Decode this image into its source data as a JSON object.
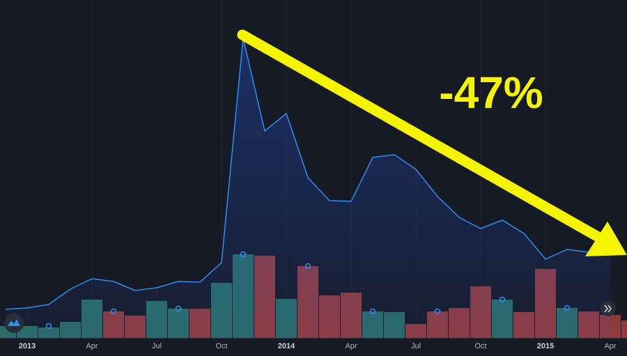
{
  "chart_data": {
    "type": "line",
    "annotation": "-47%",
    "categories": [
      null,
      "2013",
      null,
      null,
      "Apr",
      null,
      null,
      "Jul",
      null,
      null,
      "Oct",
      null,
      null,
      "2014",
      null,
      null,
      "Apr",
      null,
      null,
      "Jul",
      null,
      null,
      "Oct",
      null,
      null,
      "2015",
      null,
      null,
      "Apr",
      null
    ],
    "ylim": [
      0,
      485
    ],
    "series": [
      {
        "kind": "price",
        "color": "#2f8fef",
        "values": [
          41,
          43,
          48,
          70,
          85,
          81,
          68,
          72,
          81,
          80,
          108,
          430,
          297,
          322,
          230,
          197,
          196,
          259,
          263,
          242,
          203,
          173,
          157,
          169,
          150,
          113,
          127,
          123,
          120,
          null
        ]
      },
      {
        "kind": "volume",
        "values": [
          17,
          17,
          15,
          23,
          55,
          38,
          32,
          53,
          42,
          42,
          79,
          120,
          118,
          56,
          103,
          61,
          65,
          38,
          37,
          20,
          38,
          43,
          74,
          55,
          37,
          99,
          43,
          38,
          33,
          25
        ],
        "colors": [
          "#2a6b66",
          "#2a6b66",
          "#2a6b66",
          "#2a6b66",
          "#2a6b66",
          "#8e3b3d",
          "#8e3b3d",
          "#2a6b66",
          "#2a6b66",
          "#8e3b3d",
          "#2a6b66",
          "#2a6b66",
          "#8e3b3d",
          "#2a6b66",
          "#8e3b3d",
          "#8e3b3d",
          "#8e3b3d",
          "#2a6b66",
          "#2a6b66",
          "#8e3b3d",
          "#8e3b3d",
          "#8e3b3d",
          "#8e3b3d",
          "#2a6b66",
          "#8e3b3d",
          "#8e3b3d",
          "#2a6b66",
          "#8e3b3d",
          "#8e3b3d",
          "#8e3b3d"
        ]
      }
    ]
  }
}
